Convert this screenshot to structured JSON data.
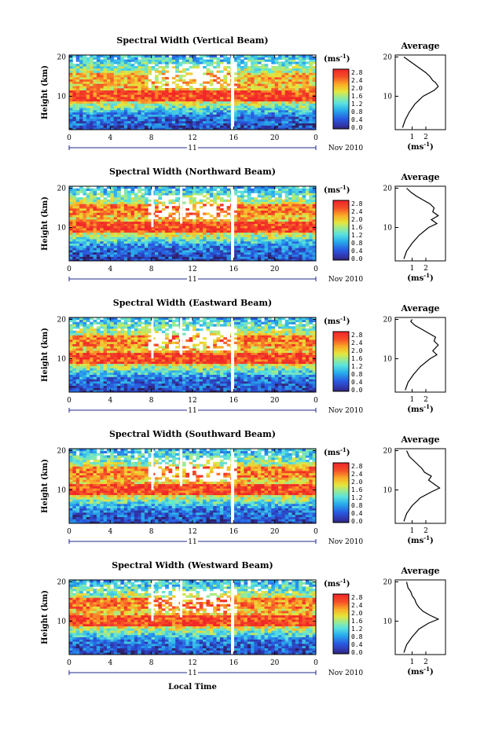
{
  "chart_data": [
    {
      "type": "heatmap",
      "title": "Spectral Width (Vertical Beam)",
      "ylabel": "Height (km)",
      "xlabel": "",
      "x_ticks": [
        "0",
        "4",
        "8",
        "12",
        "16",
        "20",
        "0"
      ],
      "y_ticks": [
        "20",
        "10"
      ],
      "date_marker": "11",
      "date_label": "Nov 2010",
      "colorbar_unit": "(ms",
      "colorbar_sup": "-1",
      "colorbar_ticks": [
        "2.8",
        "2.4",
        "2.0",
        "1.6",
        "1.2",
        "0.8",
        "0.4",
        "0.0"
      ],
      "xlim": [
        0,
        24
      ],
      "ylim": [
        1.5,
        20.5
      ],
      "average": {
        "title": "Average",
        "xlabel": "(ms",
        "xlabel_sup": "-1",
        "x_ticks": [
          "1",
          "2"
        ],
        "y_ticks": [
          "20",
          "10"
        ],
        "profile": [
          [
            0.3,
            2
          ],
          [
            0.5,
            4
          ],
          [
            0.8,
            6
          ],
          [
            1.2,
            8
          ],
          [
            1.8,
            10
          ],
          [
            2.6,
            11.5
          ],
          [
            2.9,
            12.5
          ],
          [
            2.7,
            13.5
          ],
          [
            2.5,
            14
          ],
          [
            2.3,
            15
          ],
          [
            2.0,
            16
          ],
          [
            1.6,
            17
          ],
          [
            1.2,
            18
          ],
          [
            0.8,
            19
          ],
          [
            0.4,
            20
          ]
        ]
      }
    },
    {
      "type": "heatmap",
      "title": "Spectral Width (Northward Beam)",
      "ylabel": "Height (km)",
      "xlabel": "",
      "x_ticks": [
        "0",
        "4",
        "8",
        "12",
        "16",
        "20",
        "0"
      ],
      "y_ticks": [
        "20",
        "10"
      ],
      "date_marker": "11",
      "date_label": "Nov 2010",
      "colorbar_unit": "(ms",
      "colorbar_sup": "-1",
      "colorbar_ticks": [
        "2.8",
        "2.4",
        "2.0",
        "1.6",
        "1.2",
        "0.8",
        "0.4",
        "0.0"
      ],
      "xlim": [
        0,
        24
      ],
      "ylim": [
        1.5,
        20.5
      ],
      "average": {
        "title": "Average",
        "xlabel": "(ms",
        "xlabel_sup": "-1",
        "x_ticks": [
          "1",
          "2"
        ],
        "y_ticks": [
          "20",
          "10"
        ],
        "profile": [
          [
            0.4,
            2
          ],
          [
            0.6,
            4
          ],
          [
            1.0,
            6
          ],
          [
            1.5,
            8
          ],
          [
            2.2,
            10
          ],
          [
            2.8,
            11
          ],
          [
            2.4,
            12
          ],
          [
            2.9,
            13
          ],
          [
            2.5,
            14
          ],
          [
            2.6,
            15
          ],
          [
            2.3,
            16
          ],
          [
            1.8,
            17
          ],
          [
            1.3,
            18
          ],
          [
            0.9,
            19
          ],
          [
            0.6,
            20
          ]
        ]
      }
    },
    {
      "type": "heatmap",
      "title": "Spectral Width (Eastward Beam)",
      "ylabel": "Height (km)",
      "xlabel": "",
      "x_ticks": [
        "0",
        "4",
        "8",
        "12",
        "16",
        "20",
        "0"
      ],
      "y_ticks": [
        "20",
        "10"
      ],
      "date_marker": "11",
      "date_label": "Nov 2010",
      "colorbar_unit": "(ms",
      "colorbar_sup": "-1",
      "colorbar_ticks": [
        "2.8",
        "2.4",
        "2.0",
        "1.6",
        "1.2",
        "0.8",
        "0.4",
        "0.0"
      ],
      "xlim": [
        0,
        24
      ],
      "ylim": [
        1.5,
        20.5
      ],
      "average": {
        "title": "Average",
        "xlabel": "(ms",
        "xlabel_sup": "-1",
        "x_ticks": [
          "1",
          "2"
        ],
        "y_ticks": [
          "20",
          "10"
        ],
        "profile": [
          [
            0.5,
            2
          ],
          [
            0.7,
            4
          ],
          [
            1.1,
            6
          ],
          [
            1.6,
            8
          ],
          [
            2.3,
            10
          ],
          [
            2.8,
            11
          ],
          [
            2.5,
            12
          ],
          [
            2.9,
            13.5
          ],
          [
            2.6,
            14.5
          ],
          [
            2.7,
            15.5
          ],
          [
            2.2,
            16.5
          ],
          [
            1.7,
            17.5
          ],
          [
            1.2,
            18.5
          ],
          [
            0.9,
            19.5
          ],
          [
            1.0,
            20
          ]
        ]
      }
    },
    {
      "type": "heatmap",
      "title": "Spectral Width (Southward Beam)",
      "ylabel": "Height (km)",
      "xlabel": "",
      "x_ticks": [
        "0",
        "4",
        "8",
        "12",
        "16",
        "20",
        "0"
      ],
      "y_ticks": [
        "20",
        "10"
      ],
      "date_marker": "11",
      "date_label": "Nov 2010",
      "colorbar_unit": "(ms",
      "colorbar_sup": "-1",
      "colorbar_ticks": [
        "2.8",
        "2.4",
        "2.0",
        "1.6",
        "1.2",
        "0.8",
        "0.4",
        "0.0"
      ],
      "xlim": [
        0,
        24
      ],
      "ylim": [
        1.5,
        20.5
      ],
      "average": {
        "title": "Average",
        "xlabel": "(ms",
        "xlabel_sup": "-1",
        "x_ticks": [
          "1",
          "2"
        ],
        "y_ticks": [
          "20",
          "10"
        ],
        "profile": [
          [
            0.4,
            2
          ],
          [
            0.6,
            4
          ],
          [
            1.0,
            6
          ],
          [
            1.6,
            8
          ],
          [
            2.4,
            9.5
          ],
          [
            3.0,
            10.5
          ],
          [
            2.6,
            11.5
          ],
          [
            2.2,
            12.5
          ],
          [
            2.4,
            13.5
          ],
          [
            1.9,
            14.5
          ],
          [
            1.7,
            15.5
          ],
          [
            1.4,
            16.5
          ],
          [
            1.1,
            17.5
          ],
          [
            0.8,
            18.5
          ],
          [
            0.6,
            20
          ]
        ]
      }
    },
    {
      "type": "heatmap",
      "title": "Spectral Width (Westward Beam)",
      "ylabel": "Height (km)",
      "xlabel": "Local Time",
      "x_ticks": [
        "0",
        "4",
        "8",
        "12",
        "16",
        "20",
        "0"
      ],
      "y_ticks": [
        "20",
        "10"
      ],
      "date_marker": "11",
      "date_label": "Nov 2010",
      "colorbar_unit": "(ms",
      "colorbar_sup": "-1",
      "colorbar_ticks": [
        "2.8",
        "2.4",
        "2.0",
        "1.6",
        "1.2",
        "0.8",
        "0.4",
        "0.0"
      ],
      "xlim": [
        0,
        24
      ],
      "ylim": [
        1.5,
        20.5
      ],
      "average": {
        "title": "Average",
        "xlabel": "(ms",
        "xlabel_sup": "-1",
        "x_ticks": [
          "1",
          "2"
        ],
        "y_ticks": [
          "20",
          "10"
        ],
        "profile": [
          [
            0.4,
            2
          ],
          [
            0.6,
            4
          ],
          [
            1.0,
            6
          ],
          [
            1.5,
            8
          ],
          [
            2.2,
            9.5
          ],
          [
            2.9,
            10.5
          ],
          [
            2.3,
            11.5
          ],
          [
            1.8,
            12.5
          ],
          [
            1.5,
            13.5
          ],
          [
            1.3,
            14.5
          ],
          [
            1.2,
            15.5
          ],
          [
            1.0,
            16.5
          ],
          [
            0.9,
            17.5
          ],
          [
            0.7,
            18.5
          ],
          [
            0.6,
            20
          ]
        ]
      }
    }
  ]
}
